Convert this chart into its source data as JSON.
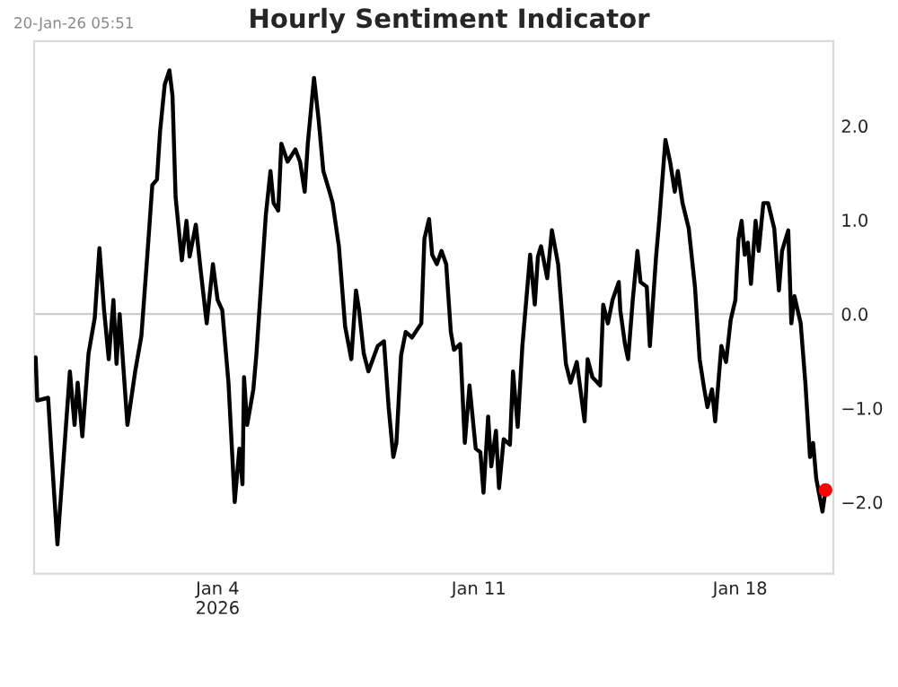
{
  "chart_data": {
    "type": "line",
    "title": "Hourly Sentiment Indicator",
    "annotations": [
      "20-Jan-26 05:51"
    ],
    "xlim": [
      "2025-12-30T02:00",
      "2026-01-20T12:00"
    ],
    "xticks": [
      {
        "value": "2026-01-04",
        "label": "Jan 4\n2026"
      },
      {
        "value": "2026-01-11",
        "label": "Jan 11"
      },
      {
        "value": "2026-01-18",
        "label": "Jan 18"
      }
    ],
    "ylim": [
      -2.76,
      2.9
    ],
    "yticks": [
      {
        "value": -2,
        "label": "−2.0"
      },
      {
        "value": -1,
        "label": "−1.0"
      },
      {
        "value": 0,
        "label": "0.0"
      },
      {
        "value": 1,
        "label": "1.0"
      },
      {
        "value": 2,
        "label": "2.0"
      }
    ],
    "ref_lines": [
      {
        "axis": "y",
        "value": 0,
        "label": null,
        "color": "#cccccc"
      }
    ],
    "grid": false,
    "series": [
      {
        "color": "#000000",
        "x": [
          "2025-12-30T03:00",
          "2025-12-30T04:00",
          "2025-12-30T11:00",
          "2025-12-30T13:00",
          "2025-12-30T17:00",
          "2025-12-30T22:00",
          "2025-12-31T01:00",
          "2025-12-31T04:00",
          "2025-12-31T06:00",
          "2025-12-31T09:00",
          "2025-12-31T13:00",
          "2025-12-31T17:00",
          "2025-12-31T20:00",
          "2025-12-31T23:00",
          "2026-01-01T02:00",
          "2026-01-01T05:00",
          "2026-01-01T07:00",
          "2026-01-01T09:00",
          "2026-01-01T14:00",
          "2026-01-01T19:00",
          "2026-01-01T23:00",
          "2026-01-02T03:00",
          "2026-01-02T06:00",
          "2026-01-02T09:00",
          "2026-01-02T11:00",
          "2026-01-02T14:00",
          "2026-01-02T17:00",
          "2026-01-02T19:00",
          "2026-01-02T21:00",
          "2026-01-03T01:00",
          "2026-01-03T04:00",
          "2026-01-03T06:00",
          "2026-01-03T10:00",
          "2026-01-03T13:00",
          "2026-01-03T17:00",
          "2026-01-03T21:00",
          "2026-01-04T00:00",
          "2026-01-04T03:00",
          "2026-01-04T07:00",
          "2026-01-04T11:00",
          "2026-01-04T14:00",
          "2026-01-04T16:00",
          "2026-01-04T17:00",
          "2026-01-04T19:00",
          "2026-01-04T23:00",
          "2026-01-05T01:00",
          "2026-01-05T07:00",
          "2026-01-05T10:00",
          "2026-01-05T12:00",
          "2026-01-05T15:00",
          "2026-01-05T17:00",
          "2026-01-05T21:00",
          "2026-01-06T02:00",
          "2026-01-06T05:00",
          "2026-01-06T08:00",
          "2026-01-06T10:00",
          "2026-01-06T14:00",
          "2026-01-06T17:00",
          "2026-01-06T20:00",
          "2026-01-07T00:00",
          "2026-01-07T02:00",
          "2026-01-07T06:00",
          "2026-01-07T10:00",
          "2026-01-07T14:00",
          "2026-01-07T17:00",
          "2026-01-07T19:00",
          "2026-01-07T22:00",
          "2026-01-08T01:00",
          "2026-01-08T07:00",
          "2026-01-08T11:00",
          "2026-01-08T14:00",
          "2026-01-08T17:00",
          "2026-01-08T19:00",
          "2026-01-08T22:00",
          "2026-01-09T01:00",
          "2026-01-09T05:00",
          "2026-01-09T11:00",
          "2026-01-09T13:00",
          "2026-01-09T16:00",
          "2026-01-09T18:00",
          "2026-01-09T21:00",
          "2026-01-10T00:00",
          "2026-01-10T03:00",
          "2026-01-10T06:00",
          "2026-01-10T08:00",
          "2026-01-10T12:00",
          "2026-01-10T13:00",
          "2026-01-10T15:00",
          "2026-01-10T18:00",
          "2026-01-10T22:00",
          "2026-01-11T01:00",
          "2026-01-11T03:00",
          "2026-01-11T06:00",
          "2026-01-11T08:00",
          "2026-01-11T11:00",
          "2026-01-11T13:00",
          "2026-01-11T16:00",
          "2026-01-11T20:00",
          "2026-01-11T22:00",
          "2026-01-12T01:00",
          "2026-01-12T04:00",
          "2026-01-12T09:00",
          "2026-01-12T12:00",
          "2026-01-12T14:00",
          "2026-01-12T16:00",
          "2026-01-12T20:00",
          "2026-01-12T23:00",
          "2026-01-13T03:00",
          "2026-01-13T08:00",
          "2026-01-13T11:00",
          "2026-01-13T15:00",
          "2026-01-13T20:00",
          "2026-01-13T22:00",
          "2026-01-14T01:00",
          "2026-01-14T06:00",
          "2026-01-14T08:00",
          "2026-01-14T11:00",
          "2026-01-14T14:00",
          "2026-01-14T18:00",
          "2026-01-14T19:00",
          "2026-01-14T22:00",
          "2026-01-15T00:00",
          "2026-01-15T03:00",
          "2026-01-15T06:00",
          "2026-01-15T08:00",
          "2026-01-15T12:00",
          "2026-01-15T14:00",
          "2026-01-15T18:00",
          "2026-01-15T20:00",
          "2026-01-16T00:00",
          "2026-01-16T03:00",
          "2026-01-16T06:00",
          "2026-01-16T08:00",
          "2026-01-16T11:00",
          "2026-01-16T15:00",
          "2026-01-16T19:00",
          "2026-01-16T22:00",
          "2026-01-17T01:00",
          "2026-01-17T03:00",
          "2026-01-17T06:00",
          "2026-01-17T08:00",
          "2026-01-17T12:00",
          "2026-01-17T15:00",
          "2026-01-17T18:00",
          "2026-01-17T21:00",
          "2026-01-17T23:00",
          "2026-01-18T01:00",
          "2026-01-18T03:00",
          "2026-01-18T05:00",
          "2026-01-18T07:00",
          "2026-01-18T10:00",
          "2026-01-18T12:00",
          "2026-01-18T15:00",
          "2026-01-18T18:00",
          "2026-01-18T22:00",
          "2026-01-19T01:00",
          "2026-01-19T03:00",
          "2026-01-19T07:00",
          "2026-01-19T09:00",
          "2026-01-19T11:00",
          "2026-01-19T15:00",
          "2026-01-19T18:00",
          "2026-01-19T21:00",
          "2026-01-19T23:00",
          "2026-01-20T01:00",
          "2026-01-20T05:00",
          "2026-01-20T07:00"
        ],
        "values": [
          -0.46,
          -0.92,
          -0.89,
          -1.43,
          -2.45,
          -1.3,
          -0.61,
          -1.18,
          -0.73,
          -1.3,
          -0.42,
          -0.04,
          0.7,
          0.04,
          -0.48,
          0.15,
          -0.53,
          0.0,
          -1.18,
          -0.61,
          -0.23,
          0.67,
          1.37,
          1.43,
          1.94,
          2.44,
          2.59,
          2.32,
          1.24,
          0.57,
          0.99,
          0.61,
          0.95,
          0.48,
          -0.1,
          0.53,
          0.15,
          0.04,
          -0.73,
          -2.0,
          -1.43,
          -1.81,
          -0.67,
          -1.18,
          -0.8,
          -0.42,
          1.05,
          1.52,
          1.18,
          1.1,
          1.81,
          1.62,
          1.75,
          1.62,
          1.3,
          1.81,
          2.51,
          2.06,
          1.52,
          1.3,
          1.18,
          0.72,
          -0.13,
          -0.48,
          0.25,
          0.04,
          -0.42,
          -0.61,
          -0.34,
          -0.29,
          -0.99,
          -1.52,
          -1.37,
          -0.44,
          -0.19,
          -0.25,
          -0.1,
          0.8,
          1.01,
          0.63,
          0.53,
          0.67,
          0.53,
          -0.19,
          -0.38,
          -0.32,
          -0.67,
          -1.37,
          -0.76,
          -1.43,
          -1.47,
          -1.9,
          -1.09,
          -1.62,
          -1.24,
          -1.85,
          -1.33,
          -1.39,
          -0.61,
          -1.2,
          -0.34,
          0.63,
          0.1,
          0.61,
          0.72,
          0.38,
          0.89,
          0.53,
          -0.53,
          -0.73,
          -0.51,
          -1.14,
          -0.48,
          -0.67,
          -0.76,
          0.1,
          -0.1,
          0.15,
          0.34,
          0.04,
          -0.32,
          -0.48,
          0.15,
          0.67,
          0.34,
          0.29,
          -0.34,
          0.61,
          0.99,
          1.85,
          1.62,
          1.3,
          1.52,
          1.18,
          0.91,
          0.29,
          -0.48,
          -0.8,
          -0.99,
          -0.8,
          -1.14,
          -0.34,
          -0.51,
          -0.06,
          0.15,
          0.8,
          0.99,
          0.63,
          0.76,
          0.32,
          0.99,
          0.67,
          1.18,
          1.18,
          0.91,
          0.25,
          0.67,
          0.89,
          -0.1,
          0.19,
          -0.1,
          -0.73,
          -1.52,
          -1.37,
          -1.75,
          -2.1,
          -1.87
        ]
      },
      {
        "type": "scatter",
        "color": "#ff0000",
        "marker": "circle",
        "x": [
          "2026-01-20T07:00"
        ],
        "values": [
          -1.87
        ]
      }
    ]
  }
}
